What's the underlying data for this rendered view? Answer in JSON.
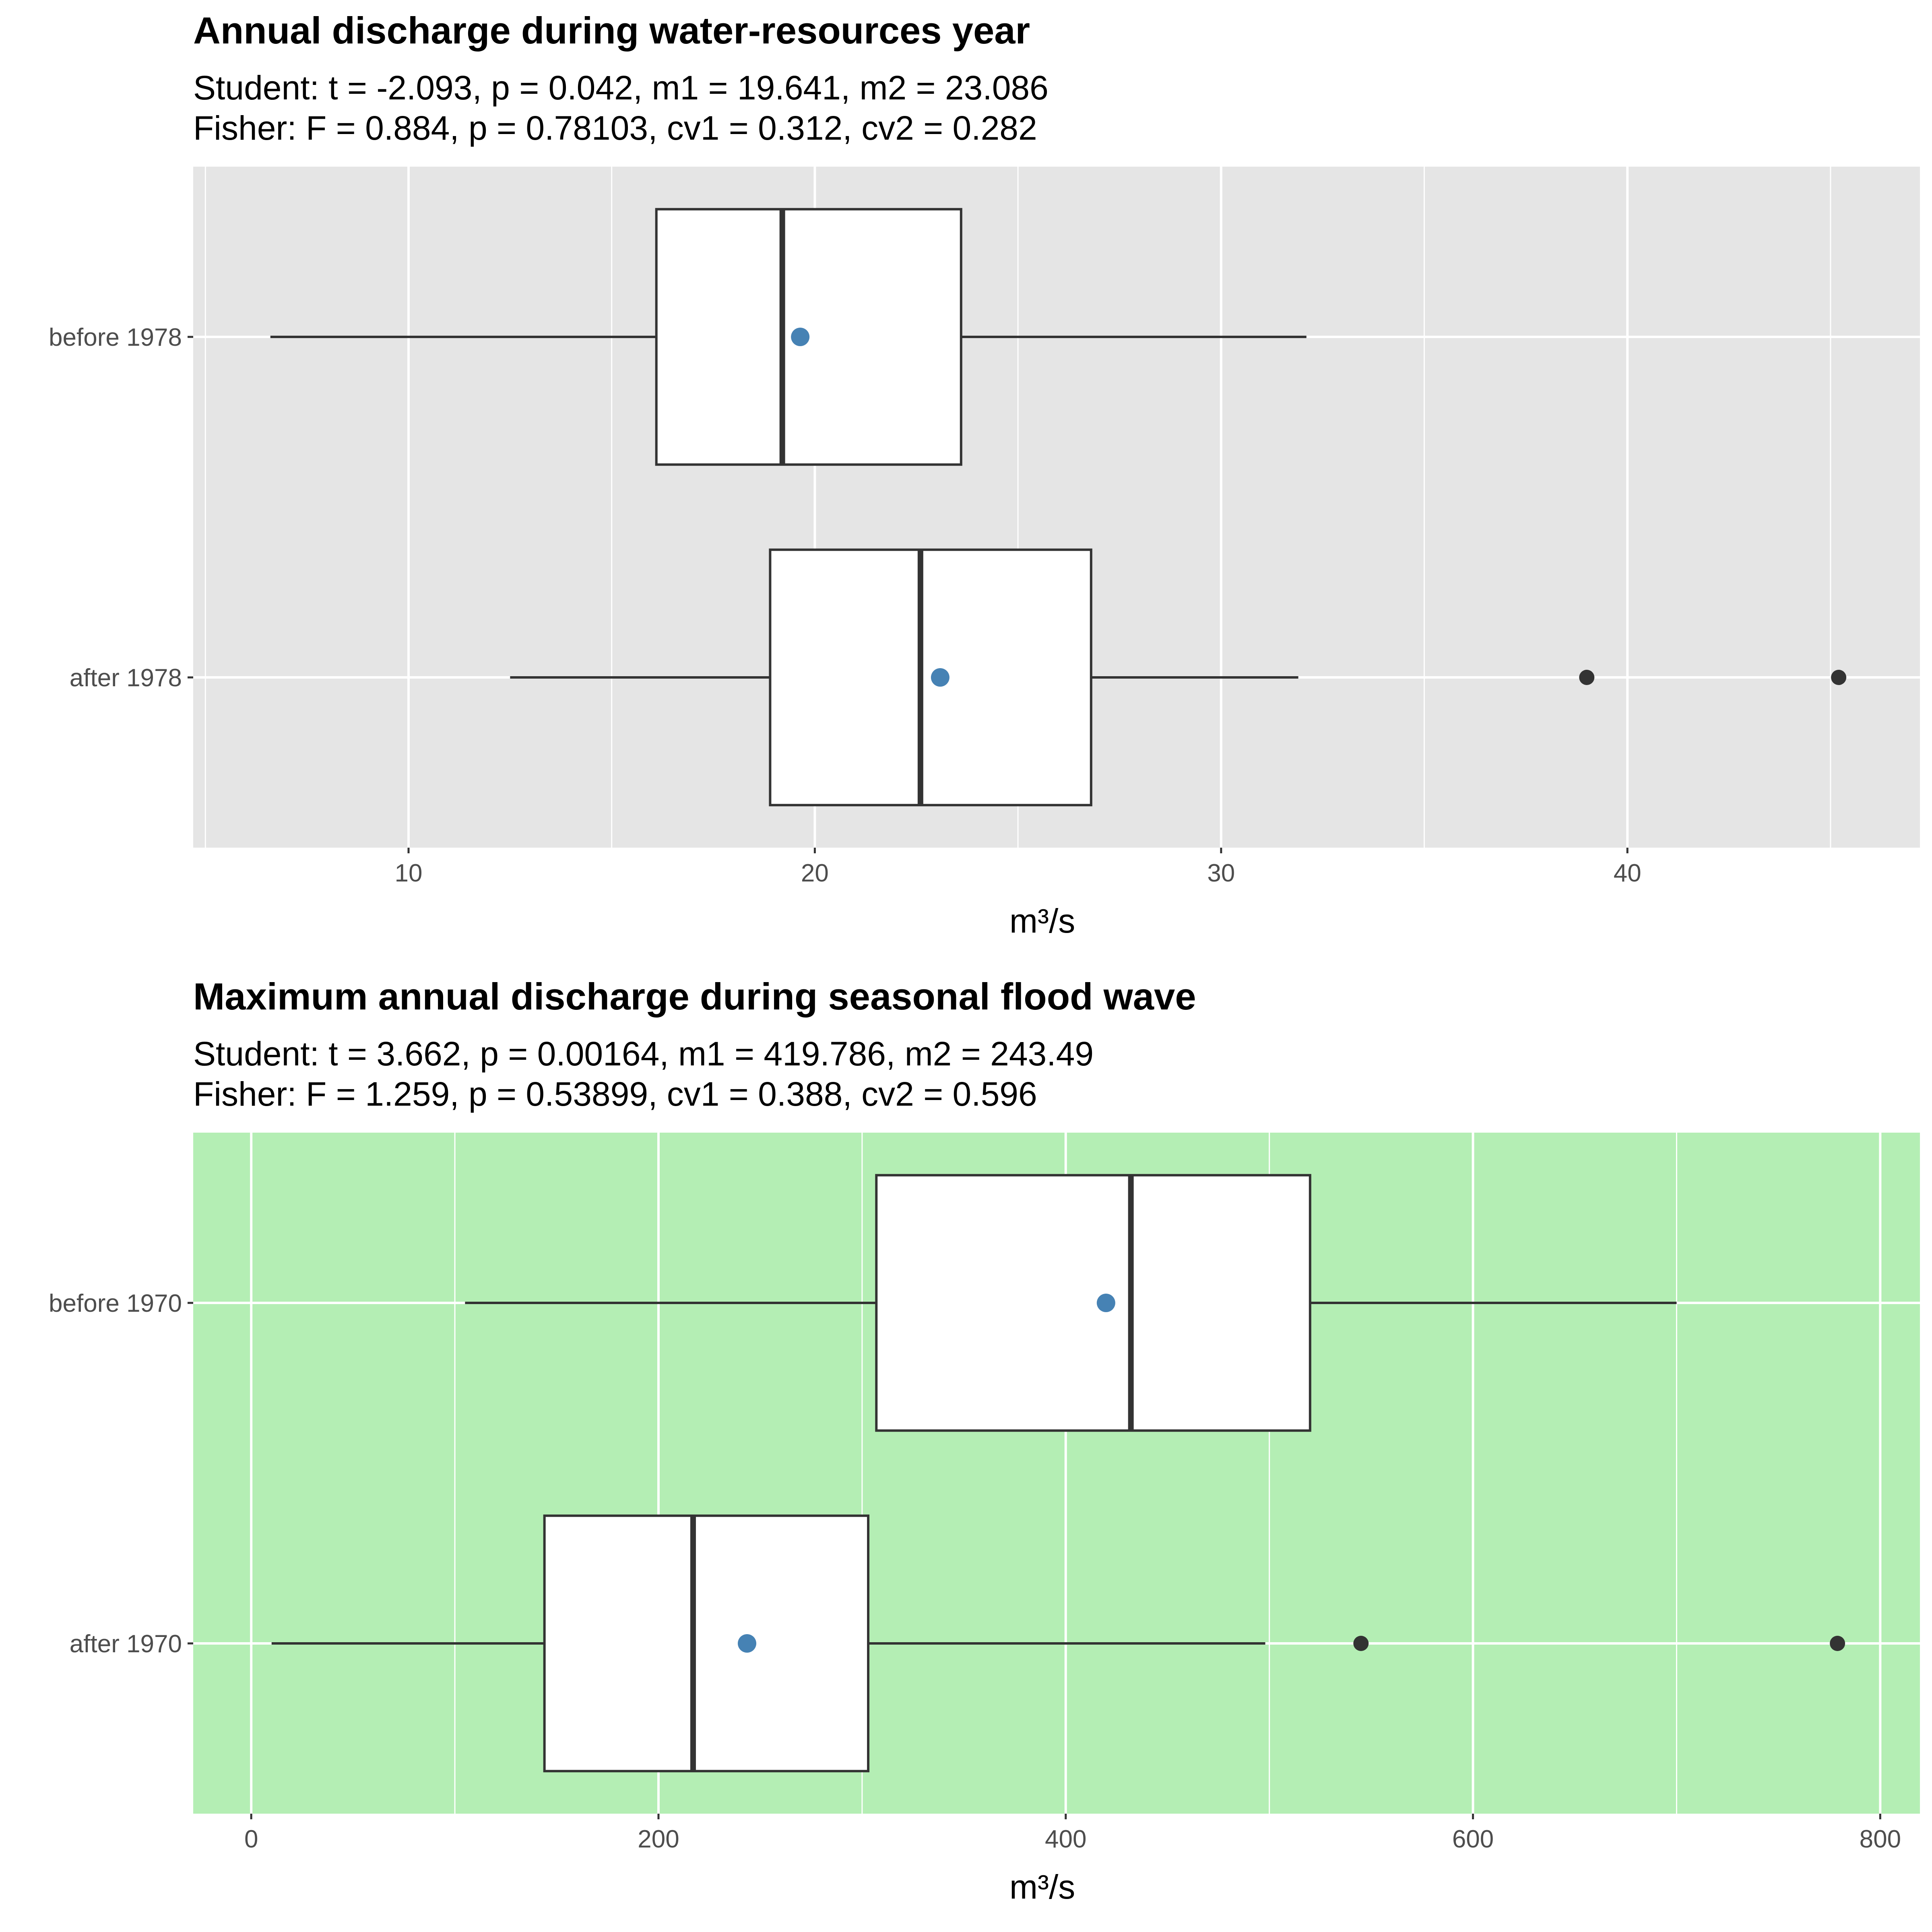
{
  "chart_data": [
    {
      "type": "boxplot",
      "title": "Annual discharge during water-resources year",
      "subtitle_lines": [
        "Student: t = -2.093, p = 0.042, m1 = 19.641, m2 = 23.086",
        "Fisher: F = 0.884, p = 0.78103, cv1 = 0.312, cv2 = 0.282"
      ],
      "xlabel": "m³/s",
      "xlim": [
        4.7,
        47.2
      ],
      "xticks": [
        10,
        20,
        30,
        40
      ],
      "xtick_labels": [
        "10",
        "20",
        "30",
        "40"
      ],
      "background": "#e5e5e5",
      "grid": true,
      "categories": [
        "before 1978",
        "after 1978"
      ],
      "boxes": [
        {
          "label": "before 1978",
          "whisker_low": 6.6,
          "q1": 16.1,
          "median": 19.2,
          "q3": 23.6,
          "whisker_high": 32.1,
          "mean": 19.641,
          "outliers": []
        },
        {
          "label": "after 1978",
          "whisker_low": 12.5,
          "q1": 18.9,
          "median": 22.6,
          "q3": 26.8,
          "whisker_high": 31.9,
          "mean": 23.086,
          "outliers": [
            39.0,
            45.2
          ]
        }
      ]
    },
    {
      "type": "boxplot",
      "title": "Maximum annual discharge during seasonal flood wave",
      "subtitle_lines": [
        "Student: t = 3.662, p = 0.00164, m1 = 419.786, m2 = 243.49",
        "Fisher: F = 1.259, p = 0.53899, cv1 = 0.388, cv2 = 0.596"
      ],
      "xlabel": "m³/s",
      "xlim": [
        -28.5,
        819.5
      ],
      "xticks": [
        0,
        200,
        400,
        600,
        800
      ],
      "xtick_labels": [
        "0",
        "200",
        "400",
        "600",
        "800"
      ],
      "background": "#b4eeb4",
      "grid": true,
      "categories": [
        "before 1970",
        "after 1970"
      ],
      "boxes": [
        {
          "label": "before 1970",
          "whisker_low": 105,
          "q1": 307,
          "median": 432,
          "q3": 520,
          "whisker_high": 700,
          "mean": 419.786,
          "outliers": []
        },
        {
          "label": "after 1970",
          "whisker_low": 10,
          "q1": 144,
          "median": 217,
          "q3": 303,
          "whisker_high": 498,
          "mean": 243.49,
          "outliers": [
            545,
            779
          ]
        }
      ]
    }
  ],
  "colors": {
    "box_fill": "#ffffff",
    "box_line": "#333333",
    "mean_point": "#4682b4",
    "outlier": "#333333",
    "grid": "#ffffff",
    "tick_text": "#4d4d4d"
  }
}
